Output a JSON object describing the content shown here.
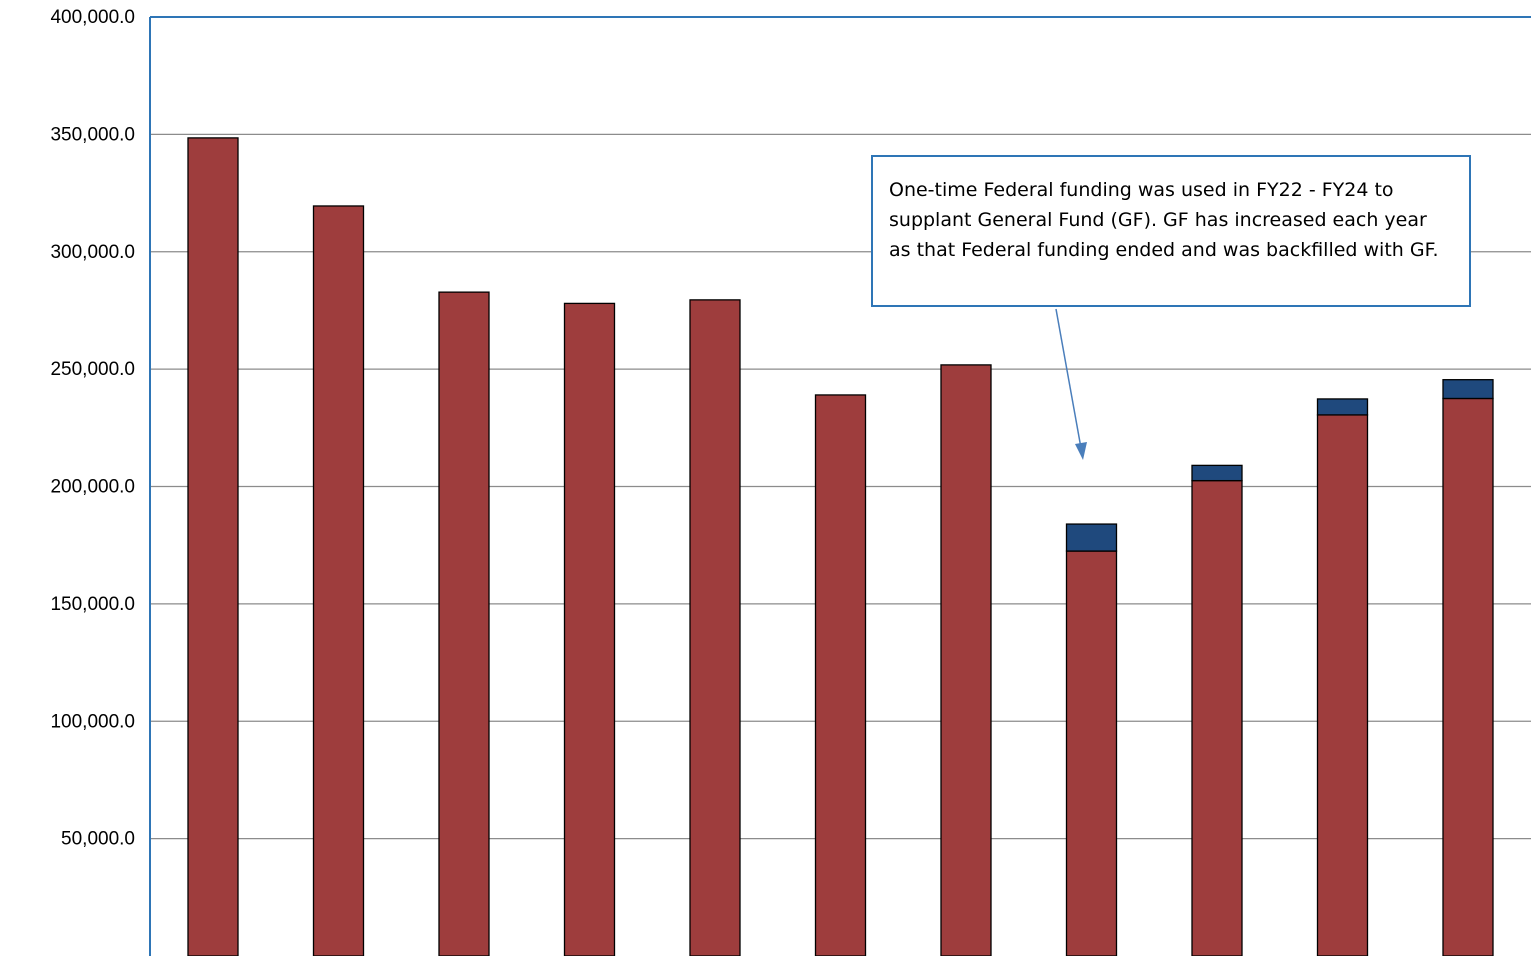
{
  "chart_data": {
    "type": "bar",
    "stacked": true,
    "categories": [
      "",
      "",
      "",
      "",
      "",
      "",
      "",
      "",
      "",
      "",
      ""
    ],
    "series": [
      {
        "color": "#9E3D3D",
        "values": [
          348500,
          319500,
          282800,
          278000,
          279500,
          239000,
          251800,
          172500,
          202500,
          230500,
          237500
        ]
      },
      {
        "color": "#1F497D",
        "values": [
          0,
          0,
          0,
          0,
          0,
          0,
          0,
          11500,
          6500,
          6800,
          8000
        ]
      }
    ],
    "ylim": [
      0,
      400000
    ],
    "yticks": [
      "",
      "50,000.0",
      "100,000.0",
      "150,000.0",
      "200,000.0",
      "250,000.0",
      "300,000.0",
      "350,000.0",
      "400,000.0"
    ],
    "ytick_values": [
      0,
      50000,
      100000,
      150000,
      200000,
      250000,
      300000,
      350000,
      400000
    ],
    "grid": true,
    "annotation": "One-time Federal funding was used in FY22 - FY24 to supplant General Fund (GF). GF has increased each year as that Federal funding ended and was backfilled with GF."
  }
}
